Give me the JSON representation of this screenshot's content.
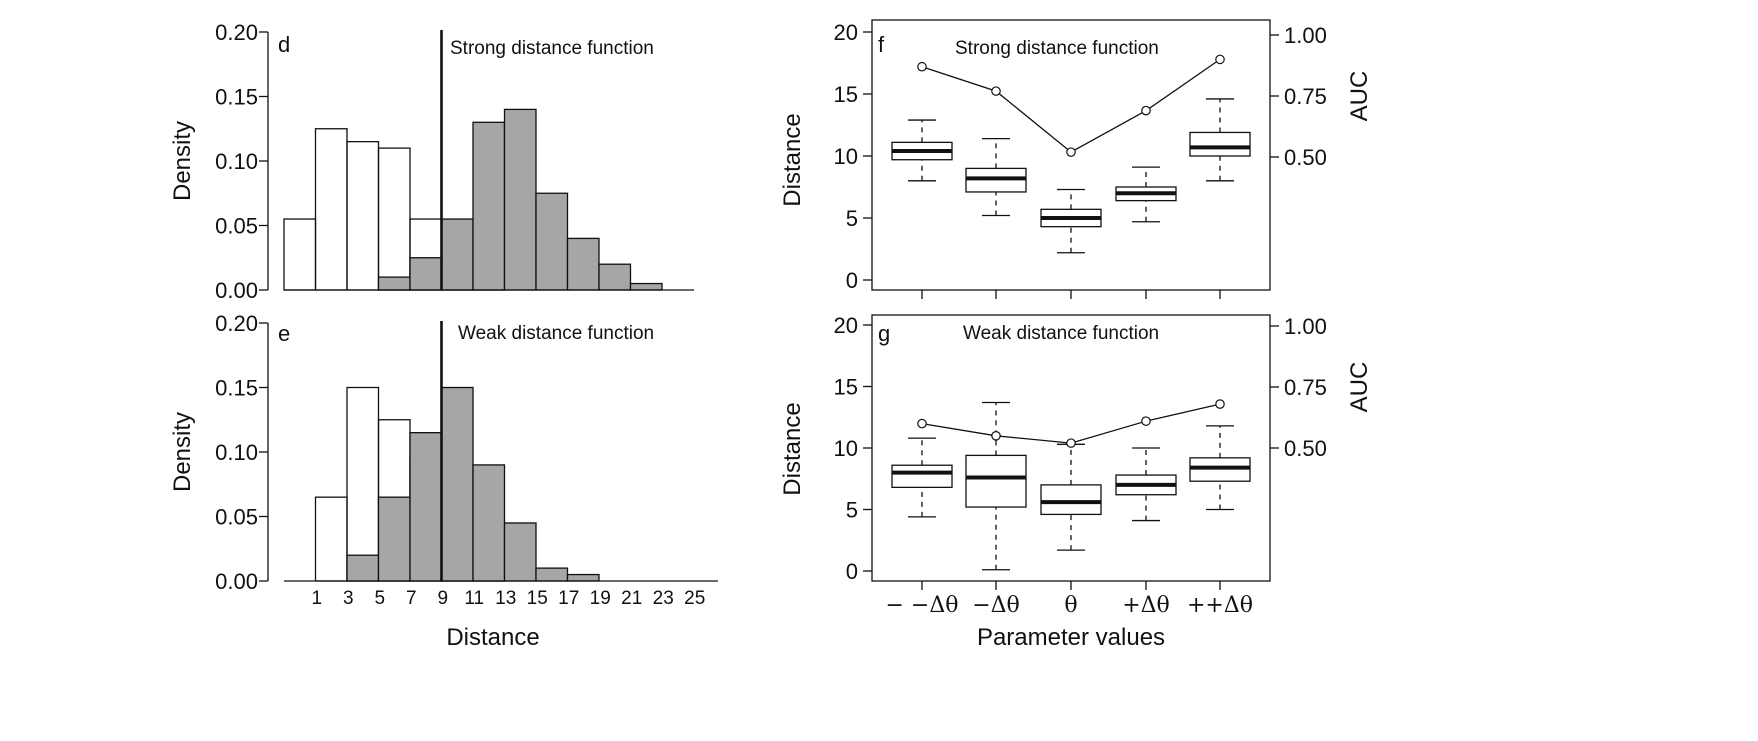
{
  "colors": {
    "axis": "#111111",
    "filled_bar": "#a6a6a6",
    "empty_bar": "#ffffff",
    "text": "#111111"
  },
  "chart_data": [
    {
      "id": "d",
      "type": "bar",
      "panel_letter": "d",
      "annotation": "Strong distance function",
      "ylabel": "Density",
      "xlabel": "",
      "bin_width": 2,
      "xlim": [
        0,
        26
      ],
      "ylim": [
        0,
        0.2
      ],
      "yticks": [
        "0.00",
        "0.05",
        "0.10",
        "0.15",
        "0.20"
      ],
      "threshold_line_x": 10,
      "series": [
        {
          "style": "outline",
          "bins": [
            {
              "x": 1,
              "value": 0.055
            },
            {
              "x": 3,
              "value": 0.125
            },
            {
              "x": 5,
              "value": 0.115
            },
            {
              "x": 7,
              "value": 0.11
            },
            {
              "x": 9,
              "value": 0.055
            },
            {
              "x": 11,
              "value": 0.02
            },
            {
              "x": 13,
              "value": 0.02
            }
          ]
        },
        {
          "style": "filled",
          "bins": [
            {
              "x": 7,
              "value": 0.01
            },
            {
              "x": 9,
              "value": 0.025
            },
            {
              "x": 11,
              "value": 0.055
            },
            {
              "x": 13,
              "value": 0.13
            },
            {
              "x": 15,
              "value": 0.14
            },
            {
              "x": 17,
              "value": 0.075
            },
            {
              "x": 19,
              "value": 0.04
            },
            {
              "x": 21,
              "value": 0.02
            },
            {
              "x": 23,
              "value": 0.005
            }
          ]
        }
      ]
    },
    {
      "id": "e",
      "type": "bar",
      "panel_letter": "e",
      "annotation": "Weak distance function",
      "ylabel": "Density",
      "xlabel": "Distance",
      "bin_width": 2,
      "xlim": [
        0,
        26
      ],
      "ylim": [
        0,
        0.2
      ],
      "yticks": [
        "0.00",
        "0.05",
        "0.10",
        "0.15",
        "0.20"
      ],
      "xticks": [
        "1",
        "3",
        "5",
        "7",
        "9",
        "11",
        "13",
        "15",
        "17",
        "19",
        "21",
        "23",
        "25"
      ],
      "threshold_line_x": 10,
      "series": [
        {
          "style": "outline",
          "bins": [
            {
              "x": 3,
              "value": 0.065
            },
            {
              "x": 5,
              "value": 0.15
            },
            {
              "x": 7,
              "value": 0.125
            },
            {
              "x": 9,
              "value": 0.095
            },
            {
              "x": 11,
              "value": 0.04
            },
            {
              "x": 13,
              "value": 0.025
            }
          ]
        },
        {
          "style": "filled",
          "bins": [
            {
              "x": 5,
              "value": 0.02
            },
            {
              "x": 7,
              "value": 0.065
            },
            {
              "x": 9,
              "value": 0.115
            },
            {
              "x": 11,
              "value": 0.15
            },
            {
              "x": 13,
              "value": 0.09
            },
            {
              "x": 15,
              "value": 0.045
            },
            {
              "x": 17,
              "value": 0.01
            },
            {
              "x": 19,
              "value": 0.005
            }
          ]
        }
      ]
    },
    {
      "id": "f",
      "type": "box",
      "panel_letter": "f",
      "annotation": "Strong distance function",
      "ylabel": "Distance",
      "y2label": "AUC",
      "xlabel": "",
      "ylim": [
        0,
        20
      ],
      "yticks": [
        "0",
        "5",
        "10",
        "15",
        "20"
      ],
      "y2lim": [
        0.05,
        1.025
      ],
      "y2ticks": [
        "0.50",
        "0.75",
        "1.00"
      ],
      "categories": [
        "− −Δθ",
        "−Δθ",
        "θ",
        "+Δθ",
        "++Δθ"
      ],
      "boxes": [
        {
          "whisker_low": 8,
          "q1": 9.7,
          "median": 10.4,
          "q3": 11.1,
          "whisker_high": 12.9
        },
        {
          "whisker_low": 5.2,
          "q1": 7.1,
          "median": 8.2,
          "q3": 9,
          "whisker_high": 11.4
        },
        {
          "whisker_low": 2.2,
          "q1": 4.3,
          "median": 5,
          "q3": 5.7,
          "whisker_high": 7.3
        },
        {
          "whisker_low": 4.7,
          "q1": 6.4,
          "median": 7,
          "q3": 7.5,
          "whisker_high": 9.1
        },
        {
          "whisker_low": 8,
          "q1": 10,
          "median": 10.7,
          "q3": 11.9,
          "whisker_high": 14.6
        }
      ],
      "auc": [
        0.87,
        0.77,
        0.52,
        0.69,
        0.9
      ]
    },
    {
      "id": "g",
      "type": "box",
      "panel_letter": "g",
      "annotation": "Weak distance function",
      "ylabel": "Distance",
      "y2label": "AUC",
      "xlabel": "Parameter values",
      "ylim": [
        0,
        20
      ],
      "yticks": [
        "0",
        "5",
        "10",
        "15",
        "20"
      ],
      "y2lim": [
        0.05,
        1.025
      ],
      "y2ticks": [
        "0.50",
        "0.75",
        "1.00"
      ],
      "categories": [
        "− −Δθ",
        "−Δθ",
        "θ",
        "+Δθ",
        "++Δθ"
      ],
      "boxes": [
        {
          "whisker_low": 4.4,
          "q1": 6.8,
          "median": 8,
          "q3": 8.6,
          "whisker_high": 10.8
        },
        {
          "whisker_low": 0.1,
          "q1": 5.2,
          "median": 7.6,
          "q3": 9.4,
          "whisker_high": 13.7
        },
        {
          "whisker_low": 1.7,
          "q1": 4.6,
          "median": 5.6,
          "q3": 7,
          "whisker_high": 10.3
        },
        {
          "whisker_low": 4.1,
          "q1": 6.2,
          "median": 7,
          "q3": 7.8,
          "whisker_high": 10
        },
        {
          "whisker_low": 5,
          "q1": 7.3,
          "median": 8.4,
          "q3": 9.2,
          "whisker_high": 11.8
        }
      ],
      "auc": [
        0.6,
        0.55,
        0.52,
        0.61,
        0.68
      ]
    }
  ]
}
